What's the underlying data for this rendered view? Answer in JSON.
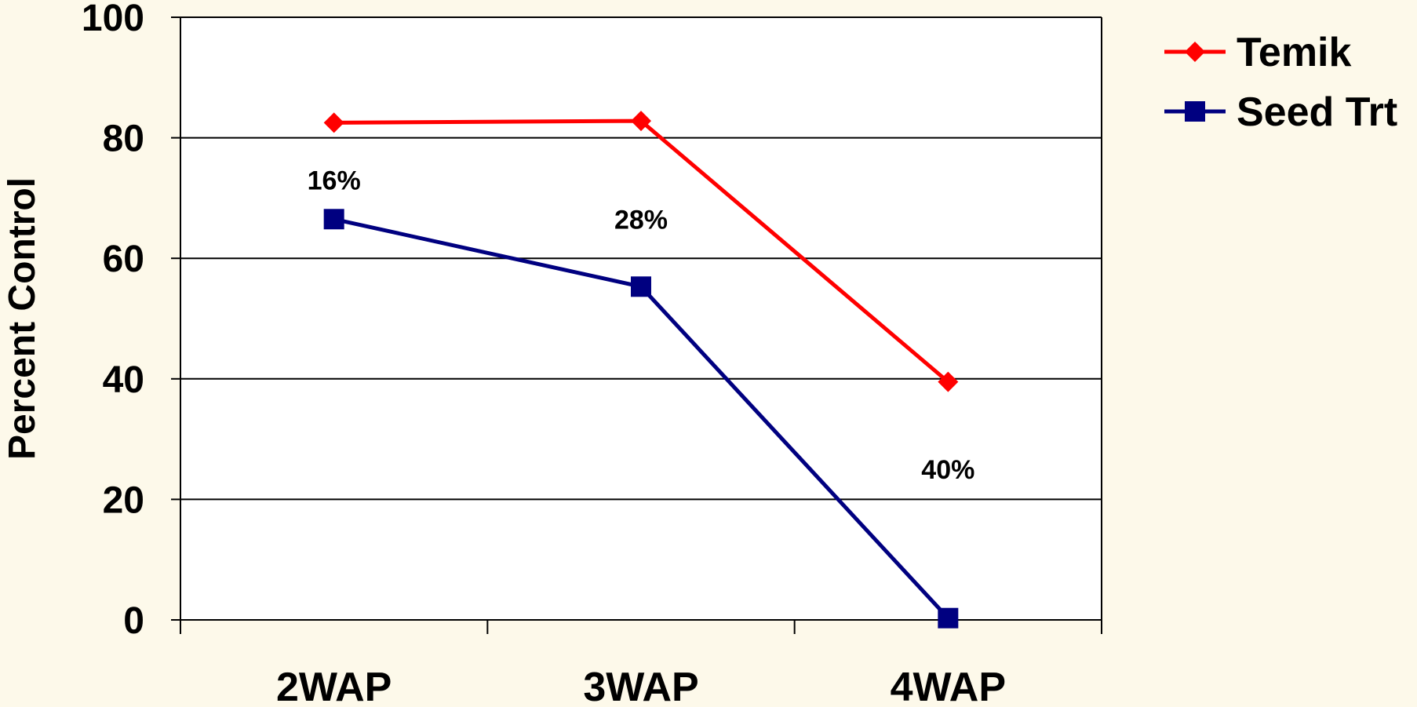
{
  "chart_data": {
    "type": "line",
    "title": "",
    "xlabel": "",
    "ylabel": "Percent Control",
    "ylim": [
      0,
      100
    ],
    "yticks": [
      0,
      20,
      40,
      60,
      80,
      100
    ],
    "categories": [
      "2WAP",
      "3WAP",
      "4WAP"
    ],
    "series": [
      {
        "name": "Temik",
        "values": [
          82.5,
          82.8,
          39.5
        ],
        "color": "#ff0000",
        "marker": "diamond"
      },
      {
        "name": "Seed Trt",
        "values": [
          66.5,
          55.3,
          0.3
        ],
        "color": "#000080",
        "marker": "square"
      }
    ],
    "annotations": [
      {
        "text": "16%",
        "category": "2WAP",
        "y": 73
      },
      {
        "text": "28%",
        "category": "3WAP",
        "y": 66.5
      },
      {
        "text": "40%",
        "category": "4WAP",
        "y": 25
      }
    ],
    "grid": true,
    "legend_position": "right",
    "background": "#fdf9ea",
    "plot_background": "#ffffff"
  }
}
